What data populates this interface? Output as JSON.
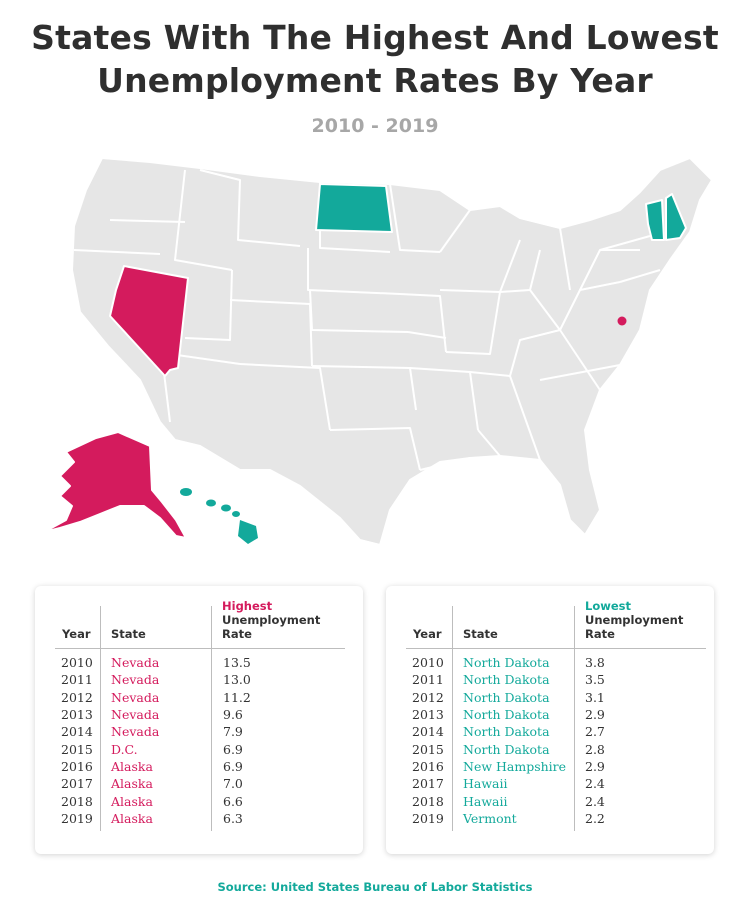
{
  "header": {
    "title_line1": "States With The Highest And Lowest",
    "title_line2": "Unemployment Rates By Year",
    "subtitle": "2010 - 2019"
  },
  "colors": {
    "highest": "#d41b5d",
    "lowest": "#13a99b",
    "land": "#e6e6e6"
  },
  "map": {
    "highlighted_highest": [
      "Nevada",
      "D.C.",
      "Alaska"
    ],
    "highlighted_lowest": [
      "North Dakota",
      "New Hampshire",
      "Vermont",
      "Hawaii"
    ]
  },
  "highest_table": {
    "col_year": "Year",
    "col_state": "State",
    "col_rate_accent": "Highest",
    "col_rate_line2": "Unemployment",
    "col_rate_line3": "Rate",
    "rows": [
      {
        "year": "2010",
        "state": "Nevada",
        "rate": "13.5"
      },
      {
        "year": "2011",
        "state": "Nevada",
        "rate": "13.0"
      },
      {
        "year": "2012",
        "state": "Nevada",
        "rate": "11.2"
      },
      {
        "year": "2013",
        "state": "Nevada",
        "rate": "9.6"
      },
      {
        "year": "2014",
        "state": "Nevada",
        "rate": "7.9"
      },
      {
        "year": "2015",
        "state": "D.C.",
        "rate": "6.9"
      },
      {
        "year": "2016",
        "state": "Alaska",
        "rate": "6.9"
      },
      {
        "year": "2017",
        "state": "Alaska",
        "rate": "7.0"
      },
      {
        "year": "2018",
        "state": "Alaska",
        "rate": "6.6"
      },
      {
        "year": "2019",
        "state": "Alaska",
        "rate": "6.3"
      }
    ]
  },
  "lowest_table": {
    "col_year": "Year",
    "col_state": "State",
    "col_rate_accent": "Lowest",
    "col_rate_line2": "Unemployment",
    "col_rate_line3": "Rate",
    "rows": [
      {
        "year": "2010",
        "state": "North Dakota",
        "rate": "3.8"
      },
      {
        "year": "2011",
        "state": "North Dakota",
        "rate": "3.5"
      },
      {
        "year": "2012",
        "state": "North Dakota",
        "rate": "3.1"
      },
      {
        "year": "2013",
        "state": "North Dakota",
        "rate": "2.9"
      },
      {
        "year": "2014",
        "state": "North Dakota",
        "rate": "2.7"
      },
      {
        "year": "2015",
        "state": "North Dakota",
        "rate": "2.8"
      },
      {
        "year": "2016",
        "state": "New Hampshire",
        "rate": "2.9"
      },
      {
        "year": "2017",
        "state": "Hawaii",
        "rate": "2.4"
      },
      {
        "year": "2018",
        "state": "Hawaii",
        "rate": "2.4"
      },
      {
        "year": "2019",
        "state": "Vermont",
        "rate": "2.2"
      }
    ]
  },
  "footer": {
    "source": "Source: United States Bureau of Labor Statistics"
  }
}
